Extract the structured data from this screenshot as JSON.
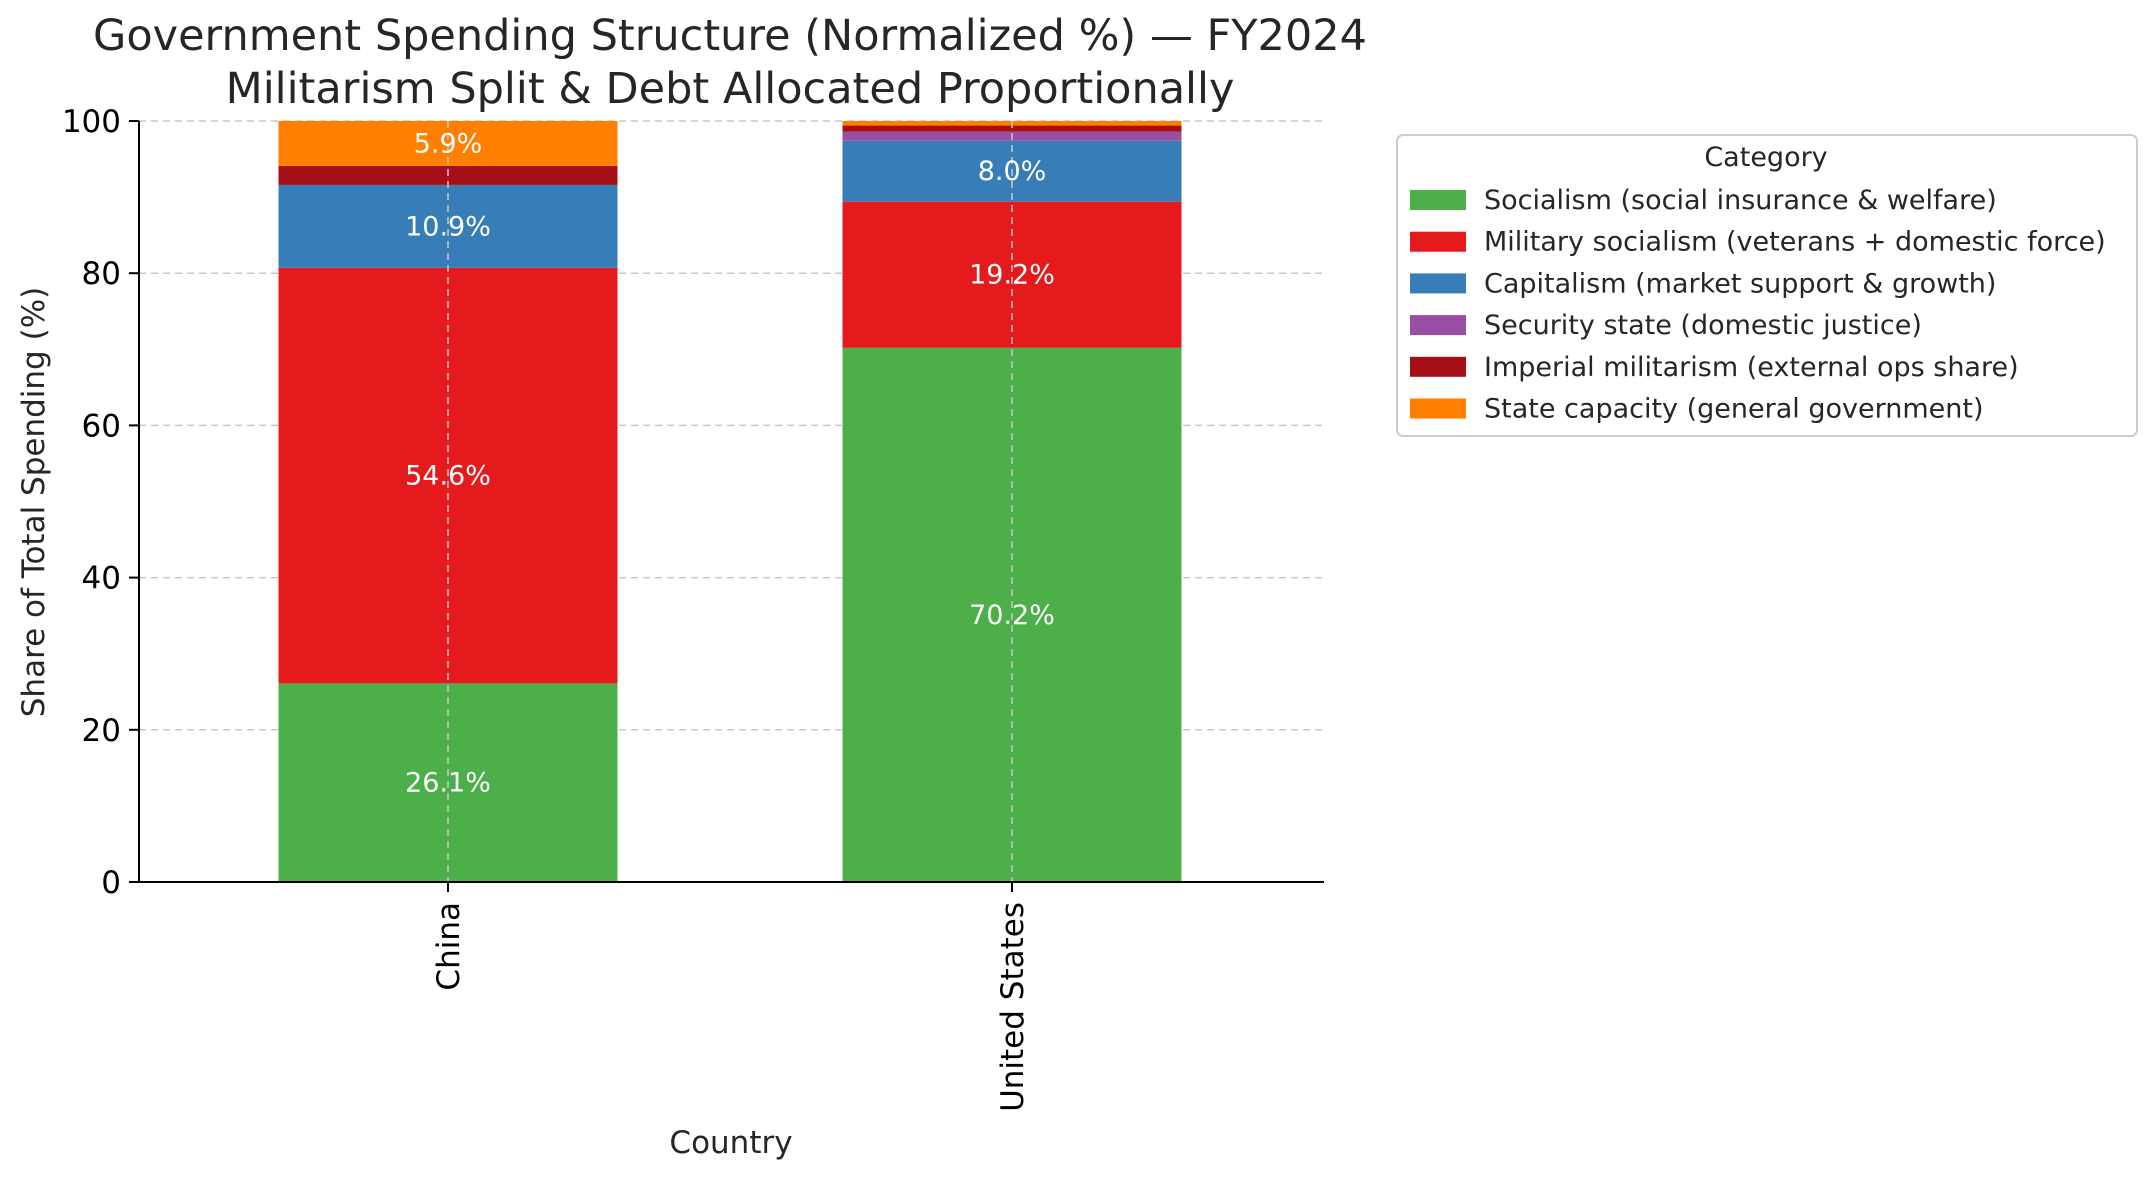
{
  "chart_data": {
    "type": "bar",
    "stacked": true,
    "title": "Government Spending Structure (Normalized %) — FY2024",
    "subtitle": "Militarism Split & Debt Allocated Proportionally",
    "xlabel": "Country",
    "ylabel": "Share of Total Spending (%)",
    "ylim": [
      0,
      100
    ],
    "yticks": [
      "0",
      "20",
      "40",
      "60",
      "80",
      "100"
    ],
    "grid": true,
    "legend_title": "Category",
    "legend_position": "outside-right",
    "categories": [
      "China",
      "United States"
    ],
    "series": [
      {
        "name": "Socialism (social insurance & welfare)",
        "color": "#4daf4a",
        "values": [
          26.1,
          70.2
        ],
        "labels": [
          "26.1%",
          "70.2%"
        ]
      },
      {
        "name": "Military socialism (veterans + domestic force)",
        "color": "#e41a1c",
        "values": [
          54.6,
          19.2
        ],
        "labels": [
          "54.6%",
          "19.2%"
        ]
      },
      {
        "name": "Capitalism (market support & growth)",
        "color": "#377eb8",
        "values": [
          10.9,
          8.0
        ],
        "labels": [
          "10.9%",
          "8.0%"
        ]
      },
      {
        "name": "Security state (domestic justice)",
        "color": "#984ea3",
        "values": [
          0.0,
          1.2
        ],
        "labels": [
          "",
          ""
        ]
      },
      {
        "name": "Imperial militarism (external ops share)",
        "color": "#a50f15",
        "values": [
          2.5,
          0.8
        ],
        "labels": [
          "",
          ""
        ]
      },
      {
        "name": "State capacity (general government)",
        "color": "#ff7f00",
        "values": [
          5.9,
          0.6
        ],
        "labels": [
          "5.9%",
          ""
        ]
      }
    ]
  }
}
